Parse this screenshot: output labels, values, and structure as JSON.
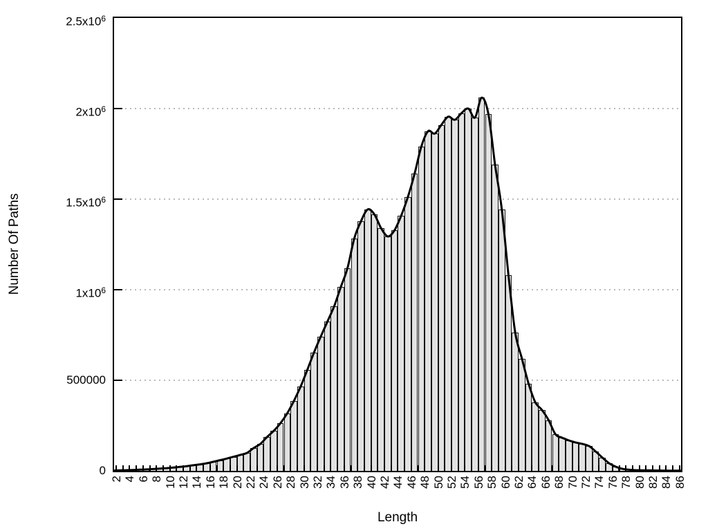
{
  "chart_data": {
    "type": "bar",
    "title": "",
    "xlabel": "Length",
    "ylabel": "Number Of Paths",
    "legend": "none",
    "grid": "dotted horizontal lines at y tick values",
    "bar_fill_color": "#e2e2e2",
    "bar_outline_color": "#151515",
    "curve_color": "#000000",
    "background_color": "#ffffff",
    "xlim": [
      1.3,
      86.5
    ],
    "ylim": [
      0,
      2500000
    ],
    "x_tick_step_labels": 2,
    "x_tick_step_minor": 1,
    "x_tick_labels": [
      "2",
      "4",
      "6",
      "8",
      "10",
      "12",
      "14",
      "16",
      "18",
      "20",
      "22",
      "24",
      "26",
      "28",
      "30",
      "32",
      "34",
      "36",
      "38",
      "40",
      "42",
      "44",
      "46",
      "48",
      "50",
      "52",
      "54",
      "56",
      "58",
      "60",
      "62",
      "64",
      "66",
      "68",
      "70",
      "72",
      "74",
      "76",
      "78",
      "80",
      "82",
      "84",
      "86"
    ],
    "y_ticks": [
      {
        "value": 0,
        "label": "0",
        "sup": "",
        "grid": false
      },
      {
        "value": 500000,
        "label": "500000",
        "sup": "",
        "grid": true
      },
      {
        "value": 1000000,
        "label": "1x10",
        "sup": "6",
        "grid": true
      },
      {
        "value": 1500000,
        "label": "1.5x10",
        "sup": "6",
        "grid": true
      },
      {
        "value": 2000000,
        "label": "2x10",
        "sup": "6",
        "grid": true
      },
      {
        "value": 2500000,
        "label": "2.5x10",
        "sup": "6",
        "grid": false
      }
    ],
    "x": [
      2,
      3,
      4,
      5,
      6,
      7,
      8,
      9,
      10,
      11,
      12,
      13,
      14,
      15,
      16,
      17,
      18,
      19,
      20,
      21,
      22,
      23,
      24,
      25,
      26,
      27,
      28,
      29,
      30,
      31,
      32,
      33,
      34,
      35,
      36,
      37,
      38,
      39,
      40,
      41,
      42,
      43,
      44,
      45,
      46,
      47,
      48,
      49,
      50,
      51,
      52,
      53,
      54,
      55,
      56,
      57,
      58,
      59,
      60,
      61,
      62,
      63,
      64,
      65,
      66,
      67,
      68,
      69,
      70,
      71,
      72,
      73,
      74,
      75,
      76,
      77,
      78,
      79,
      80,
      81,
      82,
      83,
      84,
      85,
      86
    ],
    "values": [
      3000,
      4000,
      5000,
      6500,
      8000,
      10000,
      12500,
      15000,
      18000,
      22000,
      26000,
      31000,
      36000,
      42000,
      50000,
      59000,
      68000,
      78000,
      88000,
      99000,
      126000,
      149000,
      187000,
      221000,
      263000,
      317000,
      386000,
      465000,
      557000,
      653000,
      741000,
      824000,
      908000,
      1015000,
      1120000,
      1283000,
      1378000,
      1443000,
      1416000,
      1340000,
      1294000,
      1328000,
      1409000,
      1512000,
      1640000,
      1790000,
      1875000,
      1862000,
      1910000,
      1955000,
      1938000,
      1975000,
      2000000,
      1950000,
      2060000,
      1970000,
      1690000,
      1443000,
      1080000,
      765000,
      620000,
      481000,
      378000,
      336000,
      279000,
      202000,
      183000,
      168000,
      157000,
      149000,
      137000,
      107000,
      73000,
      42000,
      23000,
      11000,
      6000,
      4000,
      3000,
      2500,
      2000,
      1600,
      1300,
      1100,
      900
    ],
    "series": [
      {
        "name": "path-length histogram",
        "style": "boxes, gray fill, black outline, bar edges aligned to integer ticks"
      },
      {
        "name": "smoothed curve",
        "style": "thick black spline through bar-top centers"
      }
    ],
    "annotations": {
      "first_local_peak": {
        "x": 39,
        "value": 1443000
      },
      "local_trough": {
        "x": 42,
        "value": 1294000
      },
      "global_peak": {
        "x": 56,
        "value": 2060000
      },
      "tail_shoulder": {
        "x": 71,
        "value": 149000
      }
    }
  }
}
